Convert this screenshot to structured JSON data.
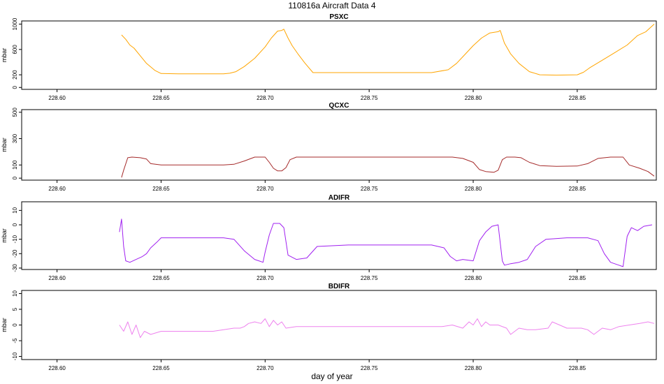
{
  "figure": {
    "title": "110816a    Aircraft Data 4",
    "xlabel": "day of year"
  },
  "chart_data": [
    {
      "type": "line",
      "title": "PSXC",
      "ylabel": "mbar",
      "color": "#ffa500",
      "xlim": [
        228.583,
        228.888
      ],
      "ylim": [
        -30,
        1050
      ],
      "xticks": [
        228.6,
        228.65,
        228.7,
        228.75,
        228.8,
        228.85
      ],
      "xtick_labels": [
        "228.60",
        "228.65",
        "228.70",
        "228.75",
        "228.80",
        "228.85"
      ],
      "yticks": [
        0,
        200,
        600,
        1000
      ],
      "ytick_labels": [
        "0",
        "200",
        "600",
        "1000"
      ],
      "series": [
        {
          "x": [
            228.631,
            228.633,
            228.635,
            228.637,
            228.64,
            228.643,
            228.647,
            228.65,
            228.66,
            228.67,
            228.68,
            228.683,
            228.686,
            228.69,
            228.695,
            228.7,
            228.703,
            228.706,
            228.708,
            228.709,
            228.711,
            228.713,
            228.716,
            228.719,
            228.723,
            228.74,
            228.76,
            228.78,
            228.788,
            228.792,
            228.796,
            228.8,
            228.804,
            228.808,
            228.812,
            228.813,
            228.815,
            228.818,
            228.822,
            228.827,
            228.832,
            228.84,
            228.85,
            228.853,
            228.856,
            228.862,
            228.868,
            228.874,
            228.879,
            228.883,
            228.887
          ],
          "y": [
            830,
            760,
            670,
            620,
            500,
            380,
            270,
            220,
            215,
            215,
            215,
            225,
            250,
            330,
            460,
            640,
            780,
            890,
            900,
            920,
            780,
            660,
            520,
            390,
            235,
            235,
            235,
            235,
            280,
            380,
            520,
            660,
            780,
            860,
            880,
            900,
            700,
            530,
            380,
            250,
            200,
            195,
            200,
            240,
            310,
            430,
            550,
            670,
            820,
            880,
            1000
          ]
        }
      ]
    },
    {
      "type": "line",
      "title": "QCXC",
      "ylabel": "mbar",
      "color": "#a52a2a",
      "xlim": [
        228.583,
        228.888
      ],
      "ylim": [
        -15,
        520
      ],
      "xticks": [
        228.6,
        228.65,
        228.7,
        228.75,
        228.8,
        228.85
      ],
      "xtick_labels": [
        "228.60",
        "228.65",
        "228.70",
        "228.75",
        "228.80",
        "228.85"
      ],
      "yticks": [
        0,
        100,
        300,
        500
      ],
      "ytick_labels": [
        "0",
        "100",
        "300",
        "500"
      ],
      "series": [
        {
          "x": [
            228.631,
            228.632,
            228.634,
            228.636,
            228.64,
            228.643,
            228.645,
            228.65,
            228.665,
            228.68,
            228.685,
            228.69,
            228.695,
            228.7,
            228.702,
            228.704,
            228.706,
            228.708,
            228.71,
            228.712,
            228.715,
            228.73,
            228.76,
            228.785,
            228.79,
            228.795,
            228.8,
            228.803,
            228.806,
            228.81,
            228.812,
            228.814,
            228.816,
            228.82,
            228.823,
            228.827,
            228.832,
            228.84,
            228.85,
            228.855,
            228.86,
            228.866,
            228.872,
            228.875,
            228.88,
            228.884,
            228.887
          ],
          "y": [
            5,
            60,
            155,
            160,
            155,
            145,
            110,
            100,
            100,
            100,
            105,
            130,
            160,
            160,
            120,
            75,
            55,
            55,
            80,
            140,
            160,
            160,
            160,
            160,
            160,
            150,
            120,
            65,
            50,
            45,
            60,
            140,
            160,
            160,
            155,
            120,
            95,
            90,
            92,
            110,
            150,
            160,
            160,
            100,
            75,
            50,
            15
          ]
        }
      ]
    },
    {
      "type": "line",
      "title": "ADIFR",
      "ylabel": "mbar",
      "color": "#a020f0",
      "xlim": [
        228.583,
        228.888
      ],
      "ylim": [
        -31,
        16
      ],
      "xticks": [
        228.6,
        228.65,
        228.7,
        228.75,
        228.8,
        228.85
      ],
      "xtick_labels": [
        "228.60",
        "228.65",
        "228.70",
        "228.75",
        "228.80",
        "228.85"
      ],
      "yticks": [
        -30,
        -20,
        -10,
        0,
        10
      ],
      "ytick_labels": [
        "-30",
        "-20",
        "-10",
        "0",
        "10"
      ],
      "series": [
        {
          "x": [
            228.63,
            228.631,
            228.632,
            228.633,
            228.635,
            228.638,
            228.641,
            228.643,
            228.645,
            228.648,
            228.65,
            228.66,
            228.68,
            228.685,
            228.69,
            228.695,
            228.697,
            228.699,
            228.7,
            228.702,
            228.704,
            228.707,
            228.709,
            228.711,
            228.715,
            228.72,
            228.725,
            228.74,
            228.76,
            228.78,
            228.786,
            228.789,
            228.792,
            228.795,
            228.8,
            228.803,
            228.806,
            228.809,
            228.812,
            228.814,
            228.815,
            228.818,
            228.822,
            228.826,
            228.83,
            228.835,
            228.845,
            228.855,
            228.86,
            228.863,
            228.866,
            228.87,
            228.872,
            228.874,
            228.876,
            228.879,
            228.882,
            228.886
          ],
          "y": [
            -5,
            4,
            -15,
            -25,
            -26,
            -24,
            -22,
            -20,
            -16,
            -12,
            -9,
            -9,
            -9,
            -10,
            -18,
            -24,
            -25,
            -26,
            -19,
            -7,
            1,
            1,
            -2,
            -21,
            -24,
            -23,
            -15,
            -14,
            -14,
            -14,
            -16,
            -22,
            -25,
            -24,
            -25,
            -11,
            -5,
            -1,
            0,
            -25,
            -28,
            -27,
            -26,
            -24,
            -15,
            -10,
            -9,
            -9,
            -11,
            -20,
            -26,
            -28,
            -29,
            -8,
            -2,
            -4,
            -1,
            0
          ]
        }
      ]
    },
    {
      "type": "line",
      "title": "BDIFR",
      "ylabel": "mbar",
      "color": "#ee82ee",
      "xlim": [
        228.583,
        228.888
      ],
      "ylim": [
        -11,
        11
      ],
      "xticks": [
        228.6,
        228.65,
        228.7,
        228.75,
        228.8,
        228.85
      ],
      "xtick_labels": [
        "228.60",
        "228.65",
        "228.70",
        "228.75",
        "228.80",
        "228.85"
      ],
      "yticks": [
        -10,
        -5,
        0,
        5,
        10
      ],
      "ytick_labels": [
        "-10",
        "-5",
        "0",
        "5",
        "10"
      ],
      "series": [
        {
          "x": [
            228.63,
            228.632,
            228.634,
            228.636,
            228.638,
            228.64,
            228.642,
            228.645,
            228.65,
            228.66,
            228.675,
            228.685,
            228.688,
            228.69,
            228.692,
            228.695,
            228.698,
            228.7,
            228.702,
            228.704,
            228.706,
            228.708,
            228.71,
            228.715,
            228.725,
            228.745,
            228.77,
            228.785,
            228.79,
            228.795,
            228.798,
            228.8,
            228.802,
            228.804,
            228.806,
            228.808,
            228.812,
            228.816,
            228.818,
            228.822,
            228.826,
            228.83,
            228.836,
            228.838,
            228.845,
            228.852,
            228.855,
            228.858,
            228.862,
            228.866,
            228.87,
            228.875,
            228.88,
            228.884,
            228.887
          ],
          "y": [
            0,
            -2,
            1,
            -3,
            0,
            -4,
            -2,
            -3,
            -2,
            -2,
            -2,
            -1,
            -1,
            -0.5,
            0.5,
            1,
            0.5,
            2,
            -0.5,
            1.5,
            0,
            1,
            -1,
            -0.5,
            -0.5,
            -0.5,
            -0.5,
            -0.5,
            0,
            -1,
            1,
            0,
            2,
            -0.5,
            1,
            0,
            0,
            -1,
            -3,
            -1,
            -1.5,
            -1.5,
            -1,
            1,
            -1,
            -1,
            -1.5,
            -3,
            -1,
            -1.5,
            -0.5,
            0,
            0.5,
            1,
            0.5
          ]
        }
      ]
    }
  ]
}
